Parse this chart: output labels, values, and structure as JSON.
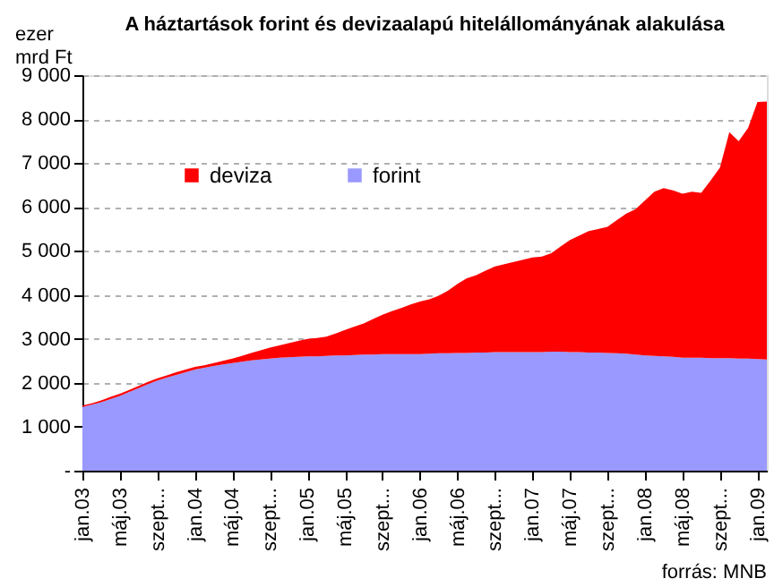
{
  "chart_data": {
    "type": "area",
    "stacked": true,
    "title": "A háztartások forint és devizaalapú hitelállományának alakulása",
    "ylabel": "ezer mrd Ft",
    "annotations": [
      "forrás: MNB"
    ],
    "categories": [
      "jan.03",
      null,
      null,
      null,
      "máj.03",
      null,
      null,
      null,
      "szept...",
      null,
      null,
      null,
      "jan.04",
      null,
      null,
      null,
      "máj.04",
      null,
      null,
      null,
      "szept...",
      null,
      null,
      null,
      "jan.05",
      null,
      null,
      null,
      "máj.05",
      null,
      null,
      null,
      "szept...",
      null,
      null,
      null,
      "jan.06",
      null,
      null,
      null,
      "máj.06",
      null,
      null,
      null,
      "szept...",
      null,
      null,
      null,
      "jan.07",
      null,
      null,
      null,
      "máj.07",
      null,
      null,
      null,
      "szept...",
      null,
      null,
      null,
      "jan.08",
      null,
      null,
      null,
      "máj.08",
      null,
      null,
      null,
      "szept...",
      null,
      null,
      null,
      "jan.09",
      null
    ],
    "series": [
      {
        "name": "forint",
        "color": "#9999ff",
        "values": [
          1450,
          1500,
          1560,
          1630,
          1700,
          1790,
          1880,
          1970,
          2050,
          2120,
          2180,
          2240,
          2300,
          2340,
          2380,
          2420,
          2450,
          2480,
          2510,
          2530,
          2550,
          2570,
          2580,
          2590,
          2600,
          2600,
          2610,
          2620,
          2620,
          2630,
          2640,
          2640,
          2650,
          2650,
          2650,
          2650,
          2650,
          2660,
          2670,
          2670,
          2680,
          2680,
          2690,
          2690,
          2700,
          2700,
          2700,
          2700,
          2700,
          2700,
          2710,
          2710,
          2700,
          2700,
          2690,
          2690,
          2680,
          2670,
          2660,
          2640,
          2620,
          2610,
          2600,
          2590,
          2570,
          2570,
          2570,
          2560,
          2560,
          2560,
          2550,
          2550,
          2540,
          2530
        ]
      },
      {
        "name": "deviza",
        "color": "#ff0000",
        "values": [
          30,
          30,
          40,
          50,
          50,
          50,
          50,
          50,
          50,
          50,
          60,
          60,
          60,
          60,
          70,
          80,
          100,
          130,
          170,
          210,
          250,
          280,
          320,
          360,
          400,
          420,
          440,
          500,
          580,
          650,
          710,
          810,
          900,
          980,
          1050,
          1130,
          1200,
          1240,
          1310,
          1430,
          1570,
          1700,
          1760,
          1860,
          1950,
          2000,
          2050,
          2100,
          2150,
          2170,
          2240,
          2390,
          2550,
          2650,
          2760,
          2810,
          2870,
          3030,
          3190,
          3310,
          3530,
          3740,
          3830,
          3790,
          3730,
          3780,
          3750,
          4040,
          4340,
          5140,
          4950,
          5250,
          5850,
          5870
        ]
      }
    ],
    "ylim": [
      0,
      9000
    ],
    "yticks": [
      {
        "value": 0,
        "label": "-"
      },
      {
        "value": 1000,
        "label": "1 000"
      },
      {
        "value": 2000,
        "label": "2 000"
      },
      {
        "value": 3000,
        "label": "3 000"
      },
      {
        "value": 4000,
        "label": "4 000"
      },
      {
        "value": 5000,
        "label": "5 000"
      },
      {
        "value": 6000,
        "label": "6 000"
      },
      {
        "value": 7000,
        "label": "7 000"
      },
      {
        "value": 8000,
        "label": "8 000"
      },
      {
        "value": 9000,
        "label": "9 000"
      }
    ],
    "grid": "y",
    "legend": "top left"
  }
}
